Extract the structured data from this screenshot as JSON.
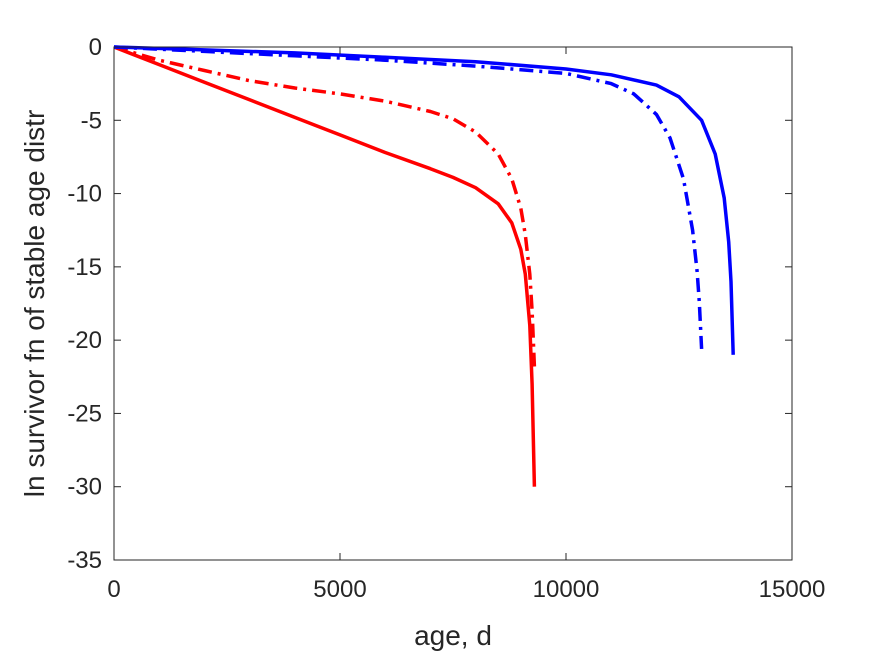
{
  "chart_data": {
    "type": "line",
    "title": "",
    "xlabel": "age, d",
    "ylabel": "ln survivor fn of stable age distr",
    "xlim": [
      0,
      15000
    ],
    "ylim": [
      -35,
      0
    ],
    "xticks": [
      0,
      5000,
      10000,
      15000
    ],
    "yticks": [
      0,
      -5,
      -10,
      -15,
      -20,
      -25,
      -30,
      -35
    ],
    "xtick_labels": [
      "0",
      "5000",
      "10000",
      "15000"
    ],
    "ytick_labels": [
      "0",
      "-5",
      "-10",
      "-15",
      "-20",
      "-25",
      "-30",
      "-35"
    ],
    "grid": false,
    "legend": "none",
    "series": [
      {
        "color": "#ff0000",
        "line_style": "solid",
        "x": [
          0,
          1000,
          2000,
          3000,
          4000,
          5000,
          6000,
          7000,
          7500,
          8000,
          8500,
          8800,
          9000,
          9100,
          9200,
          9250,
          9300
        ],
        "y": [
          0,
          -1.2,
          -2.4,
          -3.6,
          -4.8,
          -6.0,
          -7.2,
          -8.3,
          -8.9,
          -9.6,
          -10.7,
          -12.0,
          -13.8,
          -15.5,
          -19.0,
          -23.0,
          -30.0
        ]
      },
      {
        "color": "#ff0000",
        "line_style": "dashdot",
        "x": [
          0,
          1000,
          2000,
          3000,
          4000,
          5000,
          6000,
          7000,
          7500,
          8000,
          8500,
          8800,
          9000,
          9100,
          9200,
          9250,
          9300
        ],
        "y": [
          0,
          -0.9,
          -1.6,
          -2.3,
          -2.8,
          -3.2,
          -3.7,
          -4.4,
          -4.9,
          -5.8,
          -7.3,
          -9.0,
          -11.0,
          -12.8,
          -15.5,
          -18.0,
          -21.8
        ]
      },
      {
        "color": "#0000ff",
        "line_style": "solid",
        "x": [
          0,
          2000,
          4000,
          6000,
          8000,
          10000,
          11000,
          12000,
          12500,
          13000,
          13300,
          13500,
          13600,
          13650,
          13700
        ],
        "y": [
          0,
          -0.2,
          -0.4,
          -0.7,
          -1.0,
          -1.5,
          -1.9,
          -2.6,
          -3.4,
          -5.0,
          -7.3,
          -10.3,
          -13.3,
          -16.0,
          -21.0
        ]
      },
      {
        "color": "#0000ff",
        "line_style": "dashdot",
        "x": [
          0,
          2000,
          4000,
          6000,
          8000,
          10000,
          11000,
          11500,
          12000,
          12300,
          12600,
          12800,
          12900,
          12950,
          13000
        ],
        "y": [
          0,
          -0.3,
          -0.6,
          -0.9,
          -1.3,
          -1.8,
          -2.5,
          -3.2,
          -4.6,
          -6.2,
          -9.0,
          -12.5,
          -15.3,
          -17.4,
          -20.6
        ]
      }
    ]
  }
}
